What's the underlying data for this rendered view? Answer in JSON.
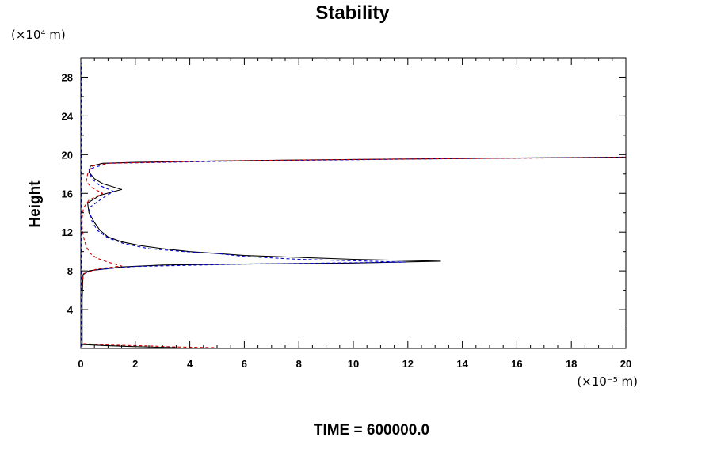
{
  "chart_data": {
    "type": "line",
    "title": "Stability",
    "ylabel": "Height",
    "xlabel": "",
    "x_unit_label": "(×10⁻⁵ m)",
    "y_unit_label": "(×10⁴ m)",
    "footer": "TIME = 600000.0",
    "xlim": [
      0,
      20
    ],
    "ylim": [
      0,
      30
    ],
    "x_ticks": [
      0,
      2,
      4,
      6,
      8,
      10,
      12,
      14,
      16,
      18,
      20
    ],
    "y_ticks": [
      4,
      8,
      12,
      16,
      20,
      24,
      28
    ],
    "x_tick_labels": [
      "0",
      "2",
      "4",
      "6",
      "8",
      "10",
      "12",
      "14",
      "16",
      "18",
      "20"
    ],
    "y_tick_labels": [
      "4",
      "8",
      "12",
      "16",
      "20",
      "24",
      "28"
    ],
    "grid": false,
    "series": [
      {
        "color": "#000000",
        "style": "solid",
        "points": [
          [
            0.05,
            0.2
          ],
          [
            0.05,
            2
          ],
          [
            0.05,
            5
          ],
          [
            0.08,
            7.6
          ],
          [
            0.3,
            8.0
          ],
          [
            1.5,
            8.4
          ],
          [
            3,
            8.6
          ],
          [
            6,
            8.7
          ],
          [
            10,
            8.8
          ],
          [
            13.2,
            9.0
          ],
          [
            10,
            9.2
          ],
          [
            8,
            9.4
          ],
          [
            6,
            9.6
          ],
          [
            5,
            9.8
          ],
          [
            4,
            10.0
          ],
          [
            3,
            10.3
          ],
          [
            2.2,
            10.6
          ],
          [
            1.5,
            11.0
          ],
          [
            1.0,
            11.5
          ],
          [
            0.7,
            12.2
          ],
          [
            0.5,
            13.0
          ],
          [
            0.3,
            14.0
          ],
          [
            0.25,
            15.0
          ],
          [
            0.7,
            15.8
          ],
          [
            1.5,
            16.4
          ],
          [
            0.8,
            17.0
          ],
          [
            0.5,
            17.5
          ],
          [
            0.3,
            18.2
          ],
          [
            0.35,
            18.8
          ],
          [
            0.8,
            19.1
          ],
          [
            2,
            19.2
          ],
          [
            5,
            19.35
          ],
          [
            8,
            19.45
          ],
          [
            12,
            19.55
          ],
          [
            16,
            19.65
          ],
          [
            20,
            19.75
          ]
        ]
      },
      {
        "color": "#0000cc",
        "style": "dashed",
        "points": [
          [
            0.02,
            0.2
          ],
          [
            0.02,
            3
          ],
          [
            0.02,
            8
          ],
          [
            0.02,
            14
          ],
          [
            0.02,
            20
          ],
          [
            0.02,
            26
          ],
          [
            0.02,
            29.5
          ]
        ]
      },
      {
        "color": "#0000cc",
        "style": "dashed",
        "points": [
          [
            0.1,
            7.7
          ],
          [
            0.5,
            8.1
          ],
          [
            2,
            8.45
          ],
          [
            6,
            8.7
          ],
          [
            11.9,
            8.9
          ],
          [
            8,
            9.2
          ],
          [
            6,
            9.5
          ],
          [
            5,
            9.8
          ],
          [
            3.8,
            10.0
          ],
          [
            2.5,
            10.3
          ],
          [
            1.6,
            10.8
          ],
          [
            1.0,
            11.4
          ],
          [
            0.6,
            12.2
          ],
          [
            0.4,
            13.2
          ],
          [
            0.3,
            14.5
          ],
          [
            0.9,
            15.7
          ],
          [
            1.2,
            16.2
          ],
          [
            0.7,
            16.8
          ],
          [
            0.4,
            17.5
          ],
          [
            0.3,
            18.5
          ],
          [
            1,
            19.1
          ],
          [
            6,
            19.35
          ],
          [
            14,
            19.6
          ],
          [
            20,
            19.73
          ]
        ]
      },
      {
        "color": "#cc0000",
        "style": "dashed",
        "points": [
          [
            0.05,
            6.5
          ],
          [
            0.1,
            7.7
          ],
          [
            0.6,
            8.2
          ],
          [
            1.5,
            8.5
          ],
          [
            1.0,
            8.9
          ],
          [
            0.6,
            9.3
          ],
          [
            0.35,
            9.8
          ],
          [
            0.2,
            10.5
          ],
          [
            0.1,
            11.5
          ],
          [
            0.05,
            12.5
          ],
          [
            0.05,
            13.5
          ],
          [
            0.1,
            14.5
          ],
          [
            0.3,
            15.3
          ],
          [
            0.8,
            16.0
          ],
          [
            0.4,
            16.6
          ],
          [
            0.2,
            17.2
          ],
          [
            0.25,
            18.0
          ],
          [
            0.4,
            18.8
          ],
          [
            1,
            19.1
          ],
          [
            5,
            19.35
          ],
          [
            10,
            19.5
          ],
          [
            15,
            19.62
          ],
          [
            20,
            19.72
          ]
        ]
      },
      {
        "color": "#cc0000",
        "style": "dashed",
        "points": [
          [
            0.1,
            0.5
          ],
          [
            1,
            0.35
          ],
          [
            2.5,
            0.25
          ],
          [
            3.5,
            0.15
          ],
          [
            4.5,
            0.1
          ],
          [
            5,
            0.08
          ]
        ]
      },
      {
        "color": "#000000",
        "style": "solid",
        "points": [
          [
            0.05,
            0.4
          ],
          [
            0.8,
            0.3
          ],
          [
            1.8,
            0.2
          ],
          [
            2.8,
            0.12
          ],
          [
            3.5,
            0.08
          ]
        ]
      }
    ]
  }
}
